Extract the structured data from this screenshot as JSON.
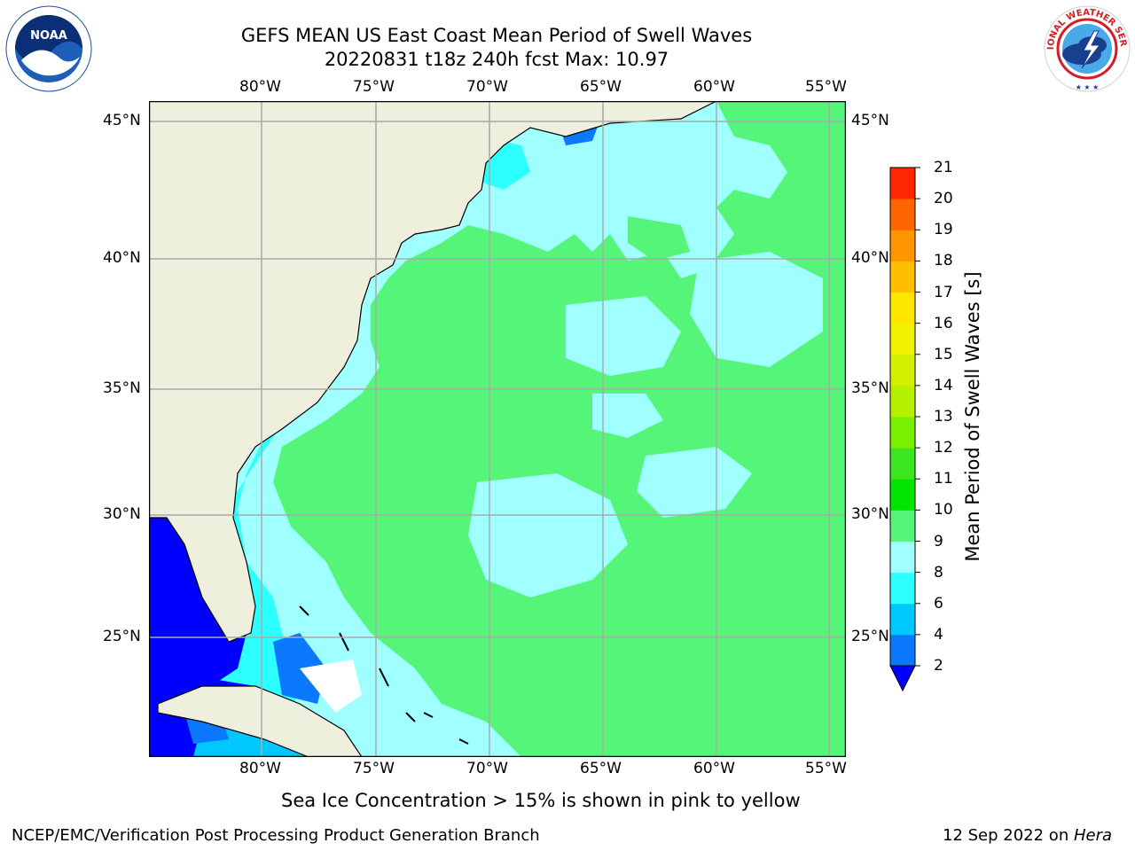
{
  "title_line1": "GEFS MEAN US East Coast Mean Period of Swell Waves",
  "title_line2": "20220831 t18z 240h fcst   Max: 10.97",
  "lon_labels": [
    "80°W",
    "75°W",
    "70°W",
    "65°W",
    "60°W",
    "55°W"
  ],
  "lat_labels": [
    "45°N",
    "40°N",
    "35°N",
    "30°N",
    "25°N"
  ],
  "colorbar": {
    "label": "Mean Period of Swell Waves [s]",
    "ticks": [
      "2",
      "4",
      "6",
      "8",
      "9",
      "10",
      "11",
      "12",
      "13",
      "14",
      "15",
      "16",
      "17",
      "18",
      "19",
      "20",
      "21"
    ],
    "colors": [
      "#0a78ff",
      "#00c8ff",
      "#2effff",
      "#a0ffff",
      "#55f57a",
      "#00e600",
      "#3ce61e",
      "#78f000",
      "#b4f000",
      "#d2f000",
      "#f0f000",
      "#ffe600",
      "#ffbe00",
      "#ff9600",
      "#ff6400",
      "#ff2800",
      "#ff0000"
    ],
    "under_color": "#0000ff"
  },
  "map_colors": {
    "land": "#efefdd",
    "under_2": "#0000ff",
    "c2_4": "#0a78ff",
    "c4_6": "#00c8ff",
    "c6_8": "#2effff",
    "c8_9": "#a0ffff",
    "c9_10": "#55f57a",
    "c10_11": "#00e600",
    "grid": "#aaaaaa"
  },
  "logos": {
    "left": "NOAA",
    "right": "NATIONAL WEATHER SERVICE"
  },
  "note": "Sea Ice Concentration > 15% is shown in pink to yellow",
  "footer_left": "NCEP/EMC/Verification Post Processing Product Generation Branch",
  "footer_date": "12 Sep 2022 on ",
  "footer_machine": "Hera"
}
